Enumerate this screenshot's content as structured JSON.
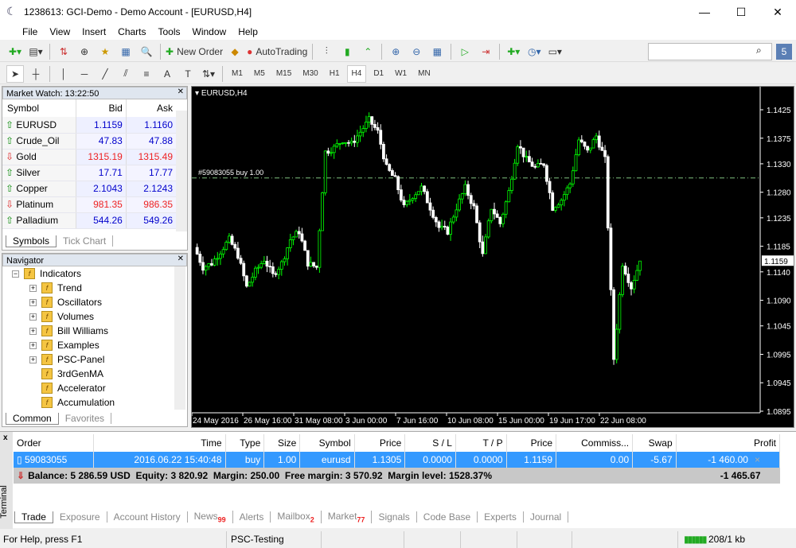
{
  "window": {
    "title": "1238613: GCI-Demo - Demo Account - [EURUSD,H4]",
    "minimize": "—",
    "maximize": "☐",
    "close": "✕"
  },
  "menu": [
    "File",
    "View",
    "Insert",
    "Charts",
    "Tools",
    "Window",
    "Help"
  ],
  "toolbar": {
    "new_order": "New Order",
    "autotrading": "AutoTrading",
    "search_placeholder": "",
    "timeframes": [
      "M1",
      "M5",
      "M15",
      "M30",
      "H1",
      "H4",
      "D1",
      "W1",
      "MN"
    ],
    "active_timeframe": "H4"
  },
  "market_watch": {
    "title": "Market Watch: 13:22:50",
    "headers": [
      "Symbol",
      "Bid",
      "Ask"
    ],
    "rows": [
      {
        "symbol": "EURUSD",
        "bid": "1.1159",
        "ask": "1.1160",
        "dir": "up"
      },
      {
        "symbol": "Crude_Oil",
        "bid": "47.83",
        "ask": "47.88",
        "dir": "up"
      },
      {
        "symbol": "Gold",
        "bid": "1315.19",
        "ask": "1315.49",
        "dir": "down"
      },
      {
        "symbol": "Silver",
        "bid": "17.71",
        "ask": "17.77",
        "dir": "up"
      },
      {
        "symbol": "Copper",
        "bid": "2.1043",
        "ask": "2.1243",
        "dir": "up"
      },
      {
        "symbol": "Platinum",
        "bid": "981.35",
        "ask": "986.35",
        "dir": "down"
      },
      {
        "symbol": "Palladium",
        "bid": "544.26",
        "ask": "549.26",
        "dir": "up"
      }
    ],
    "tabs": [
      "Symbols",
      "Tick Chart"
    ]
  },
  "navigator": {
    "title": "Navigator",
    "items": [
      {
        "label": "Indicators",
        "level": 0
      },
      {
        "label": "Trend",
        "level": 1
      },
      {
        "label": "Oscillators",
        "level": 1
      },
      {
        "label": "Volumes",
        "level": 1
      },
      {
        "label": "Bill Williams",
        "level": 1
      },
      {
        "label": "Examples",
        "level": 1
      },
      {
        "label": "PSC-Panel",
        "level": 1
      },
      {
        "label": "3rdGenMA",
        "level": 1
      },
      {
        "label": "Accelerator",
        "level": 1
      },
      {
        "label": "Accumulation",
        "level": 1
      }
    ],
    "tabs": [
      "Common",
      "Favorites"
    ]
  },
  "chart": {
    "title": "EURUSD,H4",
    "order_line_label": "#59083055 buy 1.00",
    "order_price": 1.1305,
    "current_price": "1.1159",
    "price_ticks": [
      "1.1425",
      "1.1375",
      "1.1330",
      "1.1280",
      "1.1235",
      "1.1185",
      "1.1140",
      "1.1090",
      "1.1045",
      "1.0995",
      "1.0945",
      "1.0895"
    ],
    "date_ticks": [
      "24 May 2016",
      "26 May 16:00",
      "31 May 08:00",
      "3 Jun 00:00",
      "7 Jun 16:00",
      "10 Jun 08:00",
      "15 Jun 00:00",
      "19 Jun 17:00",
      "22 Jun 08:00"
    ],
    "colors": {
      "background": "#000000",
      "bull": "#00ff00",
      "bear": "#ffffff",
      "order_line": "#7fbf7f"
    },
    "closes": [
      1.1183,
      1.1148,
      1.1155,
      1.1176,
      1.1197,
      1.1169,
      1.1113,
      1.1141,
      1.1162,
      1.1134,
      1.1155,
      1.1197,
      1.1211,
      1.1155,
      1.1148,
      1.1351,
      1.1358,
      1.1372,
      1.1365,
      1.1386,
      1.1407,
      1.1386,
      1.1323,
      1.1302,
      1.1253,
      1.1274,
      1.1288,
      1.1253,
      1.1218,
      1.1211,
      1.1253,
      1.1288,
      1.1253,
      1.1169,
      1.1253,
      1.1225,
      1.1281,
      1.1365,
      1.1337,
      1.1323,
      1.133,
      1.1253,
      1.1267,
      1.1295,
      1.1372,
      1.1351,
      1.1379,
      1.1337,
      1.0987,
      1.1155,
      1.1113,
      1.1159
    ]
  },
  "terminal": {
    "label": "Terminal",
    "headers": [
      "Order",
      "Time",
      "Type",
      "Size",
      "Symbol",
      "Price",
      "S / L",
      "T / P",
      "Price",
      "Commiss...",
      "Swap",
      "Profit"
    ],
    "row": [
      "59083055",
      "2016.06.22 15:40:48",
      "buy",
      "1.00",
      "eurusd",
      "1.1305",
      "0.0000",
      "0.0000",
      "1.1159",
      "0.00",
      "-5.67",
      "-1 460.00"
    ],
    "summary": "Balance: 5 286.59 USD  Equity: 3 820.92  Margin: 250.00  Free margin: 3 570.92  Margin level: 1528.37%",
    "summary_profit": "-1 465.67",
    "tabs": [
      {
        "label": "Trade"
      },
      {
        "label": "Exposure"
      },
      {
        "label": "Account History"
      },
      {
        "label": "News",
        "badge": "99"
      },
      {
        "label": "Alerts"
      },
      {
        "label": "Mailbox",
        "badge": "2"
      },
      {
        "label": "Market",
        "badge": "77"
      },
      {
        "label": "Signals"
      },
      {
        "label": "Code Base"
      },
      {
        "label": "Experts"
      },
      {
        "label": "Journal"
      }
    ]
  },
  "status": {
    "help": "For Help, press F1",
    "profile": "PSC-Testing",
    "traffic": "208/1 kb"
  }
}
